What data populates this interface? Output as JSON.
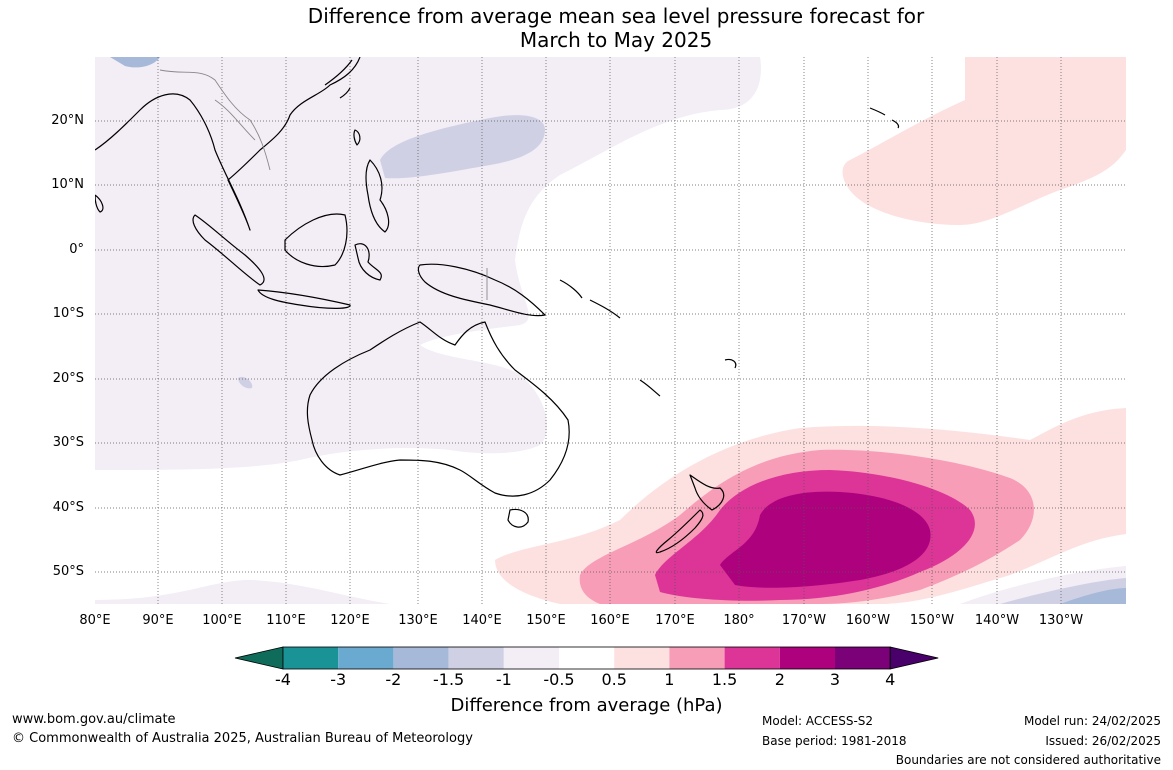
{
  "title": {
    "line1": "Difference from average mean sea level pressure forecast for",
    "line2": "March to May 2025"
  },
  "map": {
    "lat_labels": [
      "20°N",
      "10°N",
      "0°",
      "10°S",
      "20°S",
      "30°S",
      "40°S",
      "50°S"
    ],
    "lon_labels": [
      "80°E",
      "90°E",
      "100°E",
      "110°E",
      "120°E",
      "130°E",
      "140°E",
      "150°E",
      "160°E",
      "170°E",
      "180°",
      "170°W",
      "160°W",
      "150°W",
      "140°W",
      "130°W"
    ]
  },
  "colorbar": {
    "labels": [
      "-4",
      "-3",
      "-2",
      "-1.5",
      "-1",
      "-0.5",
      "0.5",
      "1",
      "1.5",
      "2",
      "3",
      "4"
    ],
    "colors": [
      "#1a9396",
      "#6aaad0",
      "#a6b9d8",
      "#d0d0e5",
      "#f3edf5",
      "#ffffff",
      "#fde1e1",
      "#f89db7",
      "#dd3497",
      "#ae017e",
      "#7a0177"
    ],
    "low_extend_color": "#0f6b5a",
    "high_extend_color": "#49006a",
    "title": "Difference from average (hPa)"
  },
  "footer": {
    "website": "www.bom.gov.au/climate",
    "copyright": "© Commonwealth of Australia 2025, Australian Bureau of Meteorology",
    "model": "Model: ACCESS-S2",
    "base_period": "Base period: 1981-2018",
    "model_run": "Model run: 24/02/2025",
    "issued": "Issued: 26/02/2025",
    "disclaimer": "Boundaries are not considered authoritative"
  }
}
